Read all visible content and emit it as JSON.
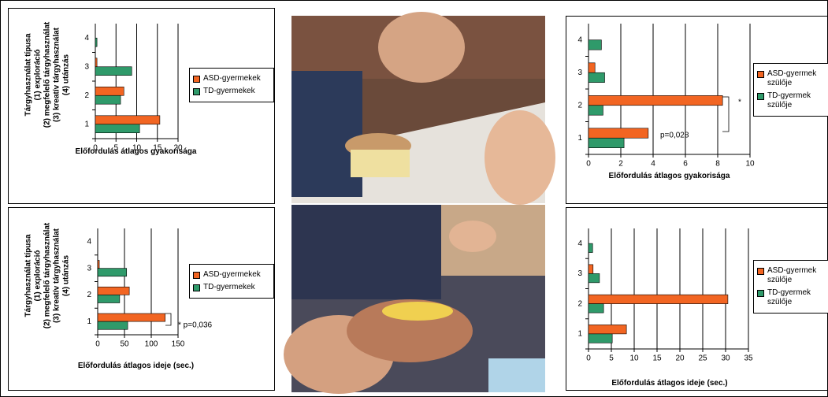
{
  "chart_data": [
    {
      "type": "bar",
      "orientation": "horizontal",
      "ylabel": [
        "Tárgyhasználat típusa",
        "(1) exploráció",
        "(2) megfelelő tárgyhasználat",
        "(3) kreatív tárgyhasználat",
        "(4) utánzás"
      ],
      "xlabel": "Előfordulás átlagos gyakorisága",
      "categories": [
        "1",
        "2",
        "3",
        "4"
      ],
      "series": [
        {
          "name": "ASD-gyermekek",
          "color": "#f26522",
          "values": [
            15.6,
            6.9,
            0.4,
            0
          ]
        },
        {
          "name": "TD-gyermekek",
          "color": "#2f9a6a",
          "values": [
            10.7,
            6.1,
            8.8,
            0.4
          ]
        }
      ],
      "xlim": [
        0,
        20
      ],
      "xticks": [
        0,
        5,
        10,
        15,
        20
      ],
      "grid": true
    },
    {
      "type": "bar",
      "orientation": "horizontal",
      "xlabel": "Előfordulás átlagos gyakorisága",
      "categories": [
        "1",
        "2",
        "3",
        "4"
      ],
      "series": [
        {
          "name": "ASD-gyermek szülője",
          "color": "#f26522",
          "values": [
            3.7,
            8.3,
            0.4,
            0
          ]
        },
        {
          "name": "TD-gyermek szülője",
          "color": "#2f9a6a",
          "values": [
            2.2,
            0.9,
            1.0,
            0.8
          ]
        }
      ],
      "xlim": [
        0,
        10
      ],
      "xticks": [
        0,
        2,
        4,
        6,
        8,
        10
      ],
      "grid": true,
      "annotations": [
        "*",
        "p=0,028"
      ]
    },
    {
      "type": "bar",
      "orientation": "horizontal",
      "ylabel": [
        "Tárgyhasználat típusa",
        "(1) exploráció",
        "(2) megfelelő tárgyhasználat",
        "(3) kreatív tárgyhasználat",
        "(4) utánzás"
      ],
      "xlabel": "Előfordulás átlagos ideje (sec.)",
      "categories": [
        "1",
        "2",
        "3",
        "4"
      ],
      "series": [
        {
          "name": "ASD-gyermekek",
          "color": "#f26522",
          "values": [
            126,
            59,
            3,
            0
          ]
        },
        {
          "name": "TD-gyermekek",
          "color": "#2f9a6a",
          "values": [
            56,
            41,
            54,
            0
          ]
        }
      ],
      "xlim": [
        0,
        150
      ],
      "xticks": [
        0,
        50,
        100,
        150
      ],
      "grid": true,
      "annotations": [
        "* p=0,036"
      ]
    },
    {
      "type": "bar",
      "orientation": "horizontal",
      "xlabel": "Előfordulás átlagos ideje (sec.)",
      "categories": [
        "1",
        "2",
        "3",
        "4"
      ],
      "series": [
        {
          "name": "ASD-gyermek szülője",
          "color": "#f26522",
          "values": [
            8.3,
            30.5,
            1.0,
            0
          ]
        },
        {
          "name": "TD-gyermek szülője",
          "color": "#2f9a6a",
          "values": [
            5.2,
            3.3,
            2.4,
            0.9
          ]
        }
      ],
      "xlim": [
        0,
        35
      ],
      "xticks": [
        0,
        5,
        10,
        15,
        20,
        25,
        30,
        35
      ],
      "grid": true
    }
  ]
}
